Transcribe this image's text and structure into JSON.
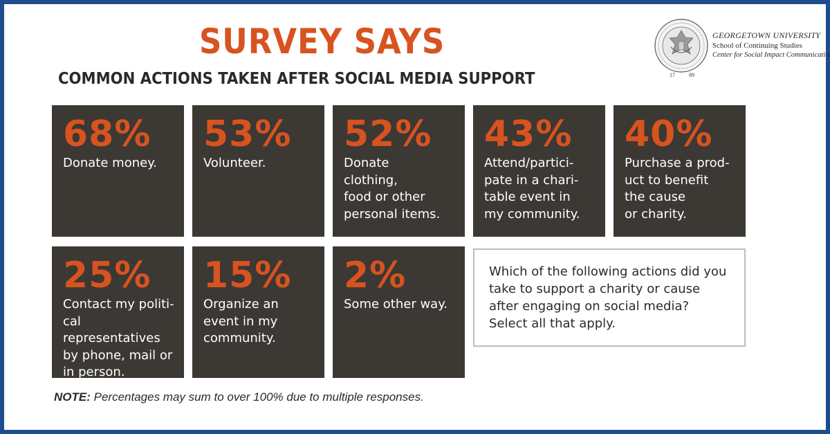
{
  "header": {
    "title": "SURVEY SAYS",
    "subtitle": "COMMON ACTIONS TAKEN AFTER SOCIAL MEDIA SUPPORT"
  },
  "logo": {
    "line1": "GEORGETOWN UNIVERSITY",
    "line2": "School of Continuing Studies",
    "line3": "Center for Social Impact Communication",
    "year_left": "17",
    "year_right": "89"
  },
  "question": {
    "text": "Which of the following actions did you\ntake to support a charity or cause\nafter engaging on social media?\nSelect all that apply."
  },
  "note": {
    "lead": "NOTE:",
    "text": " Percentages may sum to over 100% due to multiple responses."
  },
  "colors": {
    "accent": "#d7531f",
    "card_background": "#3c3834",
    "frame": "#1f4c8f"
  },
  "chart_data": {
    "type": "table",
    "title": "SURVEY SAYS",
    "subtitle": "COMMON ACTIONS TAKEN AFTER SOCIAL MEDIA SUPPORT",
    "unit": "%",
    "items": [
      {
        "value": 68,
        "display": "68%",
        "label": "Donate money."
      },
      {
        "value": 53,
        "display": "53%",
        "label": "Volunteer."
      },
      {
        "value": 52,
        "display": "52%",
        "label": "Donate\nclothing,\nfood or other\npersonal items."
      },
      {
        "value": 43,
        "display": "43%",
        "label": "Attend/partici-\npate in a chari-\ntable event in\nmy community."
      },
      {
        "value": 40,
        "display": "40%",
        "label": "Purchase a prod-\nuct to benefit\nthe cause\nor charity."
      },
      {
        "value": 25,
        "display": "25%",
        "label": "Contact my politi-\ncal representatives\nby phone, mail or\nin person."
      },
      {
        "value": 15,
        "display": "15%",
        "label": "Organize an\nevent in my\ncommunity."
      },
      {
        "value": 2,
        "display": "2%",
        "label": "Some other way."
      }
    ]
  }
}
